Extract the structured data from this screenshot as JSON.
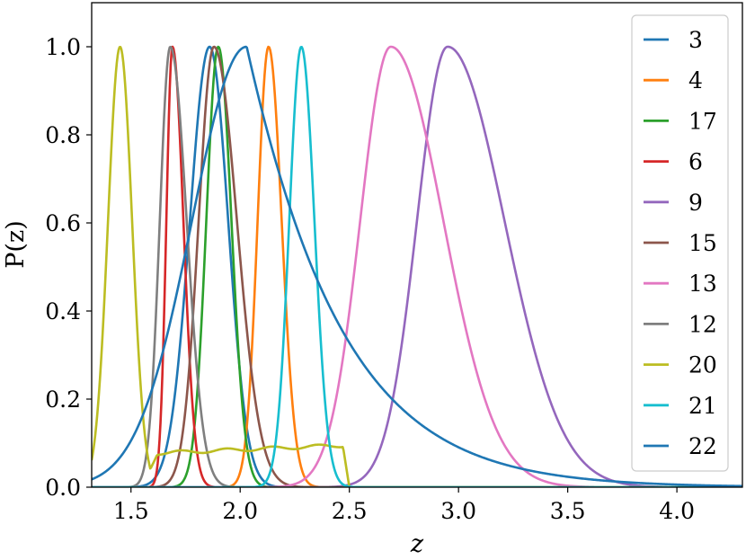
{
  "chart_data": {
    "type": "line",
    "xlabel": "z",
    "ylabel": "P(z)",
    "xlim": [
      1.32,
      4.3
    ],
    "ylim": [
      0.0,
      1.1
    ],
    "x_ticks": [
      1.5,
      2.0,
      2.5,
      3.0,
      3.5,
      4.0
    ],
    "x_tick_labels": [
      "1.5",
      "2.0",
      "2.5",
      "3.0",
      "3.5",
      "4.0"
    ],
    "y_ticks": [
      0.0,
      0.2,
      0.4,
      0.6,
      0.8,
      1.0
    ],
    "y_tick_labels": [
      "0.0",
      "0.2",
      "0.4",
      "0.6",
      "0.8",
      "1.0"
    ],
    "grid": false,
    "legend_position": "top-right",
    "series": [
      {
        "name": "3",
        "color": "#1f77b4",
        "peak_z": 1.86,
        "peak_p": 1.0
      },
      {
        "name": "4",
        "color": "#ff7f0e",
        "peak_z": 2.13,
        "peak_p": 1.0
      },
      {
        "name": "17",
        "color": "#2ca02c",
        "peak_z": 1.9,
        "peak_p": 1.0
      },
      {
        "name": "6",
        "color": "#d62728",
        "peak_z": 1.69,
        "peak_p": 1.0
      },
      {
        "name": "9",
        "color": "#9467bd",
        "peak_z": 2.95,
        "peak_p": 1.0
      },
      {
        "name": "15",
        "color": "#8c564b",
        "peak_z": 1.88,
        "peak_p": 1.0
      },
      {
        "name": "13",
        "color": "#e377c2",
        "peak_z": 2.69,
        "peak_p": 1.0
      },
      {
        "name": "12",
        "color": "#7f7f7f",
        "peak_z": 1.68,
        "peak_p": 1.0
      },
      {
        "name": "20",
        "color": "#bcbd22",
        "peak_z": 1.45,
        "peak_p": 1.0
      },
      {
        "name": "21",
        "color": "#17becf",
        "peak_z": 2.28,
        "peak_p": 1.0
      },
      {
        "name": "22",
        "color": "#1f77b4",
        "peak_z": 2.03,
        "peak_p": 1.0
      }
    ]
  }
}
